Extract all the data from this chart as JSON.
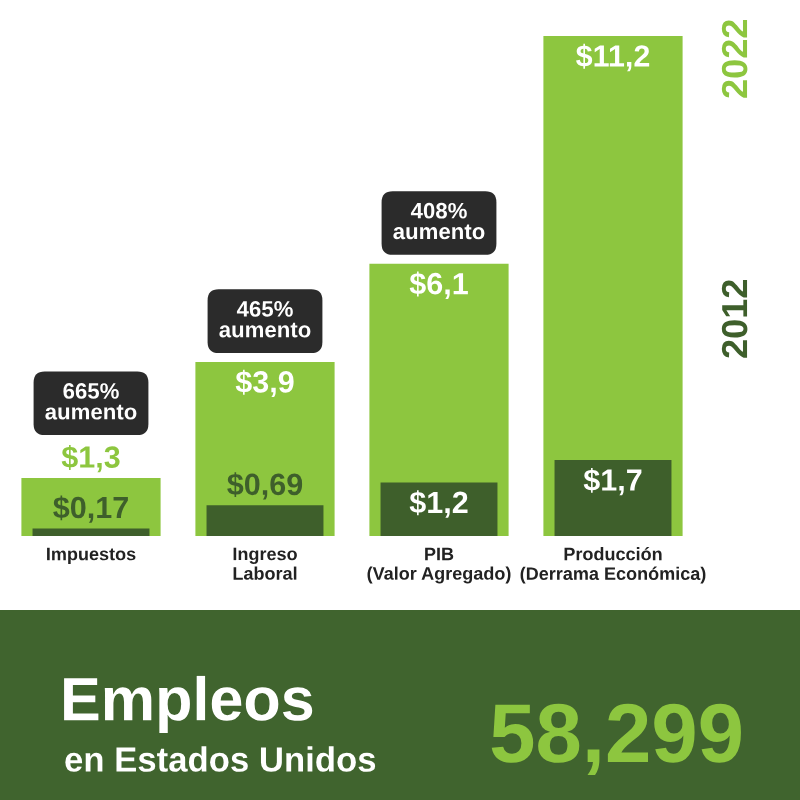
{
  "chart_data": [
    {
      "type": "bar",
      "categories": [
        "Impuestos",
        "Ingreso\nLaboral",
        "PIB\n(Valor Agregado)",
        "Producción\n(Derrama Económica)"
      ],
      "series": [
        {
          "name": "2022",
          "color": "#8dc63f",
          "values": [
            1.3,
            3.9,
            6.1,
            11.2
          ],
          "value_labels": [
            "$1,3",
            "$3,9",
            "$6,1",
            "$11,2"
          ]
        },
        {
          "name": "2012",
          "color": "#3e5f2b",
          "values": [
            0.17,
            0.69,
            1.2,
            1.7
          ],
          "value_labels": [
            "$0,17",
            "$0,69",
            "$1,2",
            "$1,7"
          ]
        }
      ],
      "annotations": [
        {
          "text": "665% aumento",
          "x": "Impuestos",
          "y": 1.3
        },
        {
          "text": "465% aumento",
          "x": "Ingreso\nLaboral",
          "y": 3.9
        },
        {
          "text": "408% aumento",
          "x": "PIB\n(Valor Agregado)",
          "y": 6.1
        }
      ],
      "legend": "right",
      "tick_labels": "x"
    },
    {
      "type": "other",
      "title": "Empleos",
      "subtitle": "en Estados Unidos",
      "annotations": [
        "58,299"
      ]
    }
  ]
}
